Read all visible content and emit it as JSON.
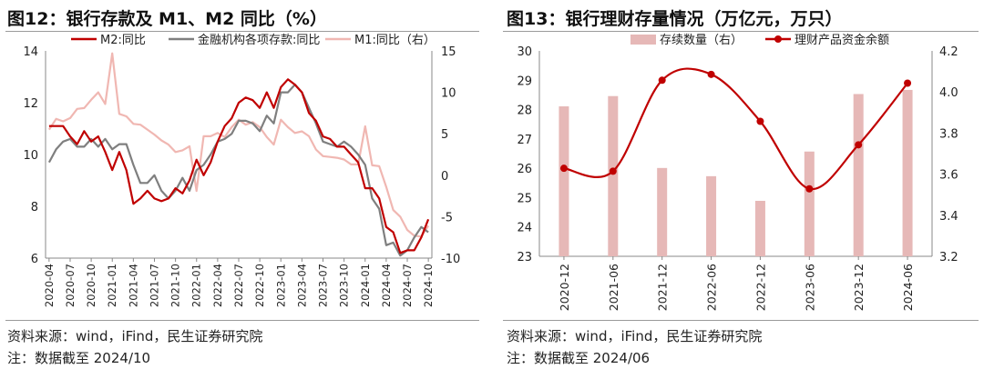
{
  "left": {
    "title": "图12：银行存款及 M1、M2 同比（%）",
    "source": "资料来源：wind，iFind，民生证券研究院",
    "note": "注：数据截至 2024/10"
  },
  "right": {
    "title": "图13：银行理财存量情况（万亿元，万只）",
    "source": "资料来源：wind，iFind，民生证券研究院",
    "note": "注：数据截至 2024/06"
  },
  "chart_data": [
    {
      "type": "line",
      "title": "银行存款及 M1、M2 同比（%）",
      "x": [
        "2020-04",
        "2020-05",
        "2020-06",
        "2020-07",
        "2020-08",
        "2020-09",
        "2020-10",
        "2020-11",
        "2020-12",
        "2021-01",
        "2021-02",
        "2021-03",
        "2021-04",
        "2021-05",
        "2021-06",
        "2021-07",
        "2021-08",
        "2021-09",
        "2021-10",
        "2021-11",
        "2021-12",
        "2022-01",
        "2022-02",
        "2022-03",
        "2022-04",
        "2022-05",
        "2022-06",
        "2022-07",
        "2022-08",
        "2022-09",
        "2022-10",
        "2022-11",
        "2022-12",
        "2023-01",
        "2023-02",
        "2023-03",
        "2023-04",
        "2023-05",
        "2023-06",
        "2023-07",
        "2023-08",
        "2023-09",
        "2023-10",
        "2023-11",
        "2023-12",
        "2024-01",
        "2024-02",
        "2024-03",
        "2024-04",
        "2024-05",
        "2024-06",
        "2024-07",
        "2024-08",
        "2024-09",
        "2024-10"
      ],
      "x_ticks": [
        "2020-04",
        "2020-07",
        "2020-10",
        "2021-01",
        "2021-04",
        "2021-07",
        "2021-10",
        "2022-01",
        "2022-04",
        "2022-07",
        "2022-10",
        "2023-01",
        "2023-04",
        "2023-07",
        "2023-10",
        "2024-01",
        "2024-04",
        "2024-07",
        "2024-10"
      ],
      "series": [
        {
          "name": "M2:同比",
          "axis": "left",
          "color": "#c00000",
          "values": [
            11.1,
            11.1,
            11.1,
            10.7,
            10.4,
            10.9,
            10.5,
            10.7,
            10.1,
            9.4,
            10.1,
            9.4,
            8.1,
            8.3,
            8.6,
            8.3,
            8.2,
            8.3,
            8.7,
            8.5,
            9.0,
            9.8,
            9.2,
            9.7,
            10.5,
            11.1,
            11.4,
            12.0,
            12.2,
            12.1,
            11.8,
            12.4,
            11.8,
            12.6,
            12.9,
            12.7,
            12.4,
            11.6,
            11.3,
            10.7,
            10.6,
            10.3,
            10.3,
            10.0,
            9.7,
            8.7,
            8.7,
            8.3,
            7.2,
            7.0,
            6.2,
            6.3,
            6.3,
            6.8,
            7.5
          ]
        },
        {
          "name": "金融机构各项存款:同比",
          "axis": "left",
          "color": "#7f7f7f",
          "values": [
            9.7,
            10.2,
            10.5,
            10.6,
            10.3,
            10.3,
            10.6,
            10.3,
            10.6,
            10.2,
            10.4,
            10.4,
            9.6,
            8.9,
            8.9,
            9.2,
            8.6,
            8.3,
            8.6,
            9.1,
            8.6,
            9.4,
            9.6,
            10.0,
            10.5,
            10.6,
            10.8,
            11.3,
            11.3,
            11.2,
            10.9,
            11.5,
            11.2,
            12.4,
            12.4,
            12.7,
            12.4,
            11.8,
            11.2,
            10.5,
            10.4,
            10.3,
            10.5,
            10.3,
            10.0,
            9.6,
            8.3,
            7.9,
            6.5,
            6.6,
            6.1,
            6.3,
            6.8,
            7.2,
            7.0
          ]
        },
        {
          "name": "M1:同比（右）",
          "axis": "right",
          "color": "#f0b7b2",
          "values": [
            5.5,
            6.8,
            6.5,
            6.9,
            8.0,
            8.1,
            9.1,
            10.0,
            8.6,
            14.7,
            7.4,
            7.1,
            6.2,
            6.1,
            5.5,
            4.9,
            4.2,
            3.7,
            2.8,
            3.0,
            3.5,
            -1.9,
            4.7,
            4.7,
            5.1,
            4.6,
            5.8,
            6.7,
            6.1,
            6.4,
            5.8,
            4.6,
            3.7,
            6.7,
            5.8,
            5.1,
            5.3,
            4.7,
            3.1,
            2.3,
            2.2,
            2.1,
            1.9,
            1.3,
            1.3,
            5.9,
            1.2,
            1.1,
            -1.4,
            -4.2,
            -5.0,
            -6.6,
            -7.3,
            -7.4,
            -6.1
          ]
        }
      ],
      "y_left": {
        "min": 6,
        "max": 14,
        "ticks": [
          6,
          8,
          10,
          12,
          14
        ]
      },
      "y_right": {
        "min": -10,
        "max": 15,
        "ticks": [
          -10,
          -5,
          0,
          5,
          10,
          15
        ]
      },
      "legend": "top"
    },
    {
      "type": "bar+line",
      "title": "银行理财存量情况（万亿元，万只）",
      "categories": [
        "2020-12",
        "2021-06",
        "2021-12",
        "2022-06",
        "2022-12",
        "2023-06",
        "2023-12",
        "2024-06"
      ],
      "series": [
        {
          "name": "存续数量（右）",
          "kind": "bar",
          "axis": "right",
          "color": "#e6b8b7",
          "values": [
            3.93,
            3.98,
            3.63,
            3.59,
            3.47,
            3.71,
            3.99,
            4.01
          ]
        },
        {
          "name": "理财产品资金余额",
          "kind": "line",
          "axis": "left",
          "color": "#c00000",
          "values": [
            26.0,
            25.9,
            29.0,
            29.2,
            27.6,
            25.3,
            26.8,
            28.9
          ]
        }
      ],
      "y_left": {
        "min": 23,
        "max": 30,
        "ticks": [
          23,
          24,
          25,
          26,
          27,
          28,
          29,
          30
        ]
      },
      "y_right": {
        "min": 3.2,
        "max": 4.2,
        "ticks": [
          "3.2",
          "3.4",
          "3.6",
          "3.8",
          "4.0",
          "4.2"
        ]
      },
      "legend": "top"
    }
  ]
}
